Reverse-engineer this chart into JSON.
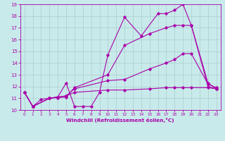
{
  "bg_color": "#c8eaea",
  "line_color": "#aa00aa",
  "grid_color": "#aacccc",
  "xlabel": "Windchill (Refroidissement éolien,°C)",
  "xlim": [
    -0.5,
    23.5
  ],
  "ylim": [
    10,
    19
  ],
  "yticks": [
    10,
    11,
    12,
    13,
    14,
    15,
    16,
    17,
    18,
    19
  ],
  "xticks": [
    0,
    1,
    2,
    3,
    4,
    5,
    6,
    7,
    8,
    9,
    10,
    11,
    12,
    13,
    14,
    15,
    16,
    17,
    18,
    19,
    20,
    21,
    22,
    23
  ],
  "lines": [
    {
      "x": [
        0,
        1,
        2,
        3,
        4,
        5,
        6,
        7,
        8,
        9,
        10,
        12,
        14,
        16,
        17,
        18,
        19,
        20,
        22,
        23
      ],
      "y": [
        11.5,
        10.3,
        10.9,
        11.0,
        11.1,
        12.3,
        10.3,
        10.3,
        10.3,
        11.5,
        14.7,
        17.9,
        16.3,
        18.2,
        18.2,
        18.5,
        19.0,
        17.2,
        12.3,
        11.8
      ]
    },
    {
      "x": [
        0,
        1,
        3,
        4,
        5,
        6,
        10,
        12,
        15,
        17,
        18,
        19,
        20,
        22,
        23
      ],
      "y": [
        11.5,
        10.3,
        11.0,
        11.05,
        11.1,
        11.9,
        13.0,
        15.5,
        16.5,
        17.0,
        17.2,
        17.2,
        17.2,
        12.0,
        11.8
      ]
    },
    {
      "x": [
        0,
        1,
        3,
        4,
        5,
        6,
        10,
        12,
        15,
        17,
        18,
        19,
        20,
        22,
        23
      ],
      "y": [
        11.5,
        10.3,
        11.0,
        11.1,
        11.2,
        11.8,
        12.5,
        12.6,
        13.5,
        14.0,
        14.3,
        14.8,
        14.8,
        12.2,
        11.9
      ]
    },
    {
      "x": [
        0,
        1,
        3,
        4,
        5,
        6,
        10,
        12,
        15,
        17,
        18,
        19,
        20,
        22,
        23
      ],
      "y": [
        11.5,
        10.3,
        11.0,
        11.1,
        11.2,
        11.5,
        11.7,
        11.7,
        11.8,
        11.9,
        11.9,
        11.9,
        11.9,
        11.9,
        11.8
      ]
    }
  ]
}
